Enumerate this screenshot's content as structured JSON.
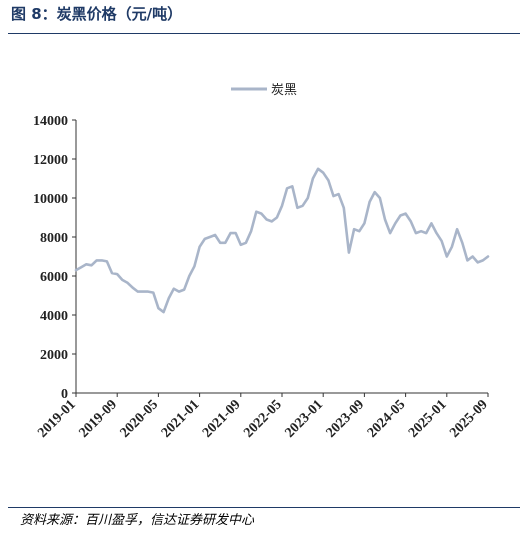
{
  "figure": {
    "title": "图 8：炭黑价格（元/吨）",
    "source": "资料来源：百川盈孚，信达证券研发中心"
  },
  "colors": {
    "series": "#a9b5c9",
    "title": "#1f3a66",
    "axis": "#333333"
  },
  "chart_data": {
    "type": "line",
    "title": "",
    "xlabel": "",
    "ylabel": "",
    "ylim": [
      0,
      14000
    ],
    "yticks": [
      "0",
      "2000",
      "4000",
      "6000",
      "8000",
      "10000",
      "12000",
      "14000"
    ],
    "xticks": [
      "2019-01",
      "2019-09",
      "2020-05",
      "2021-01",
      "2021-09",
      "2022-05",
      "2023-01",
      "2023-09",
      "2024-05",
      "2025-01",
      "2025-09"
    ],
    "grid": false,
    "legend": "top-center",
    "series": [
      {
        "name": "炭黑",
        "points": [
          [
            "2019-01",
            6300
          ],
          [
            "2019-02",
            6450
          ],
          [
            "2019-03",
            6600
          ],
          [
            "2019-04",
            6550
          ],
          [
            "2019-05",
            6800
          ],
          [
            "2019-06",
            6800
          ],
          [
            "2019-07",
            6750
          ],
          [
            "2019-08",
            6150
          ],
          [
            "2019-09",
            6100
          ],
          [
            "2019-10",
            5800
          ],
          [
            "2019-11",
            5650
          ],
          [
            "2019-12",
            5400
          ],
          [
            "2020-01",
            5200
          ],
          [
            "2020-02",
            5200
          ],
          [
            "2020-03",
            5200
          ],
          [
            "2020-04",
            5150
          ],
          [
            "2020-05",
            4350
          ],
          [
            "2020-06",
            4150
          ],
          [
            "2020-07",
            4850
          ],
          [
            "2020-08",
            5350
          ],
          [
            "2020-09",
            5200
          ],
          [
            "2020-10",
            5300
          ],
          [
            "2020-11",
            6000
          ],
          [
            "2020-12",
            6500
          ],
          [
            "2021-01",
            7500
          ],
          [
            "2021-02",
            7900
          ],
          [
            "2021-03",
            8000
          ],
          [
            "2021-04",
            8100
          ],
          [
            "2021-05",
            7700
          ],
          [
            "2021-06",
            7700
          ],
          [
            "2021-07",
            8200
          ],
          [
            "2021-08",
            8200
          ],
          [
            "2021-09",
            7600
          ],
          [
            "2021-10",
            7700
          ],
          [
            "2021-11",
            8300
          ],
          [
            "2021-12",
            9300
          ],
          [
            "2022-01",
            9200
          ],
          [
            "2022-02",
            8900
          ],
          [
            "2022-03",
            8800
          ],
          [
            "2022-04",
            9000
          ],
          [
            "2022-05",
            9600
          ],
          [
            "2022-06",
            10500
          ],
          [
            "2022-07",
            10600
          ],
          [
            "2022-08",
            9500
          ],
          [
            "2022-09",
            9600
          ],
          [
            "2022-10",
            10000
          ],
          [
            "2022-11",
            11000
          ],
          [
            "2022-12",
            11500
          ],
          [
            "2023-01",
            11300
          ],
          [
            "2023-02",
            10900
          ],
          [
            "2023-03",
            10100
          ],
          [
            "2023-04",
            10200
          ],
          [
            "2023-05",
            9500
          ],
          [
            "2023-06",
            7200
          ],
          [
            "2023-07",
            8400
          ],
          [
            "2023-08",
            8300
          ],
          [
            "2023-09",
            8700
          ],
          [
            "2023-10",
            9800
          ],
          [
            "2023-11",
            10300
          ],
          [
            "2023-12",
            10000
          ],
          [
            "2024-01",
            8900
          ],
          [
            "2024-02",
            8200
          ],
          [
            "2024-03",
            8700
          ],
          [
            "2024-04",
            9100
          ],
          [
            "2024-05",
            9200
          ],
          [
            "2024-06",
            8800
          ],
          [
            "2024-07",
            8200
          ],
          [
            "2024-08",
            8300
          ],
          [
            "2024-09",
            8200
          ],
          [
            "2024-10",
            8700
          ],
          [
            "2024-11",
            8200
          ],
          [
            "2024-12",
            7800
          ],
          [
            "2025-01",
            7000
          ],
          [
            "2025-02",
            7500
          ],
          [
            "2025-03",
            8400
          ],
          [
            "2025-04",
            7700
          ],
          [
            "2025-05",
            6800
          ],
          [
            "2025-06",
            7000
          ],
          [
            "2025-07",
            6700
          ],
          [
            "2025-08",
            6800
          ],
          [
            "2025-09",
            7000
          ]
        ]
      }
    ]
  }
}
